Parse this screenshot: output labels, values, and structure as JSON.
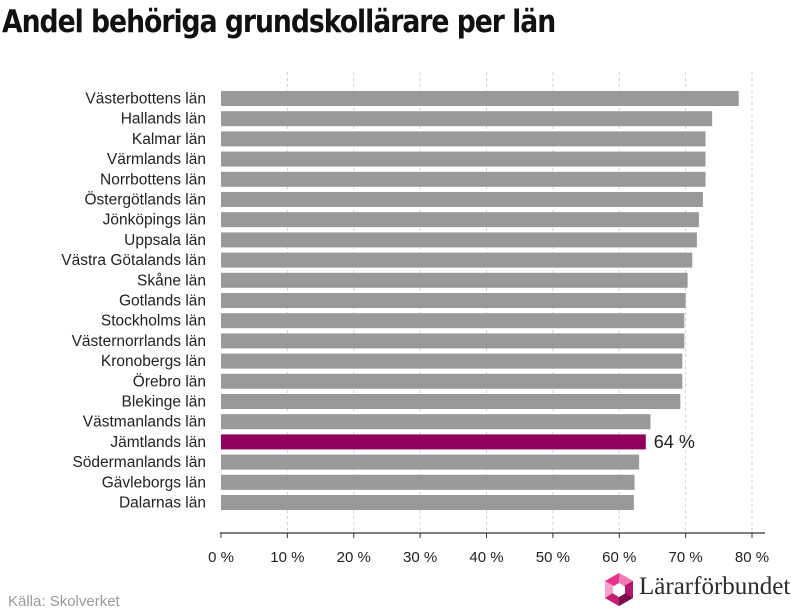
{
  "chart_data": {
    "type": "bar",
    "orientation": "horizontal",
    "title": "Andel behöriga grundskollärare per län",
    "categories": [
      "Västerbottens län",
      "Hallands län",
      "Kalmar län",
      "Värmlands län",
      "Norrbottens län",
      "Östergötlands län",
      "Jönköpings län",
      "Uppsala län",
      "Västra Götalands län",
      "Skåne län",
      "Gotlands län",
      "Stockholms län",
      "Västernorrlands län",
      "Kronobergs län",
      "Örebro län",
      "Blekinge län",
      "Västmanlands län",
      "Jämtlands län",
      "Södermanlands län",
      "Gävleborgs län",
      "Dalarnas län"
    ],
    "values": [
      78,
      74,
      73,
      73,
      73,
      72.6,
      72,
      71.7,
      71,
      70.3,
      70,
      69.8,
      69.8,
      69.5,
      69.5,
      69.2,
      64.7,
      64,
      63,
      62.3,
      62.2
    ],
    "highlight": {
      "category": "Jämtlands län",
      "label": "64 %",
      "color": "#92005e"
    },
    "bar_color": "#999999",
    "xlim": [
      0,
      80
    ],
    "xticks": [
      "0 %",
      "10 %",
      "20 %",
      "30 %",
      "40 %",
      "50 %",
      "60 %",
      "70 %",
      "80 %"
    ],
    "grid": "vertical dashed"
  },
  "footer": {
    "source": "Källa: Skolverket",
    "logo_text": "Lärarförbundet",
    "logo_icon": "hexagon-logo-icon"
  }
}
